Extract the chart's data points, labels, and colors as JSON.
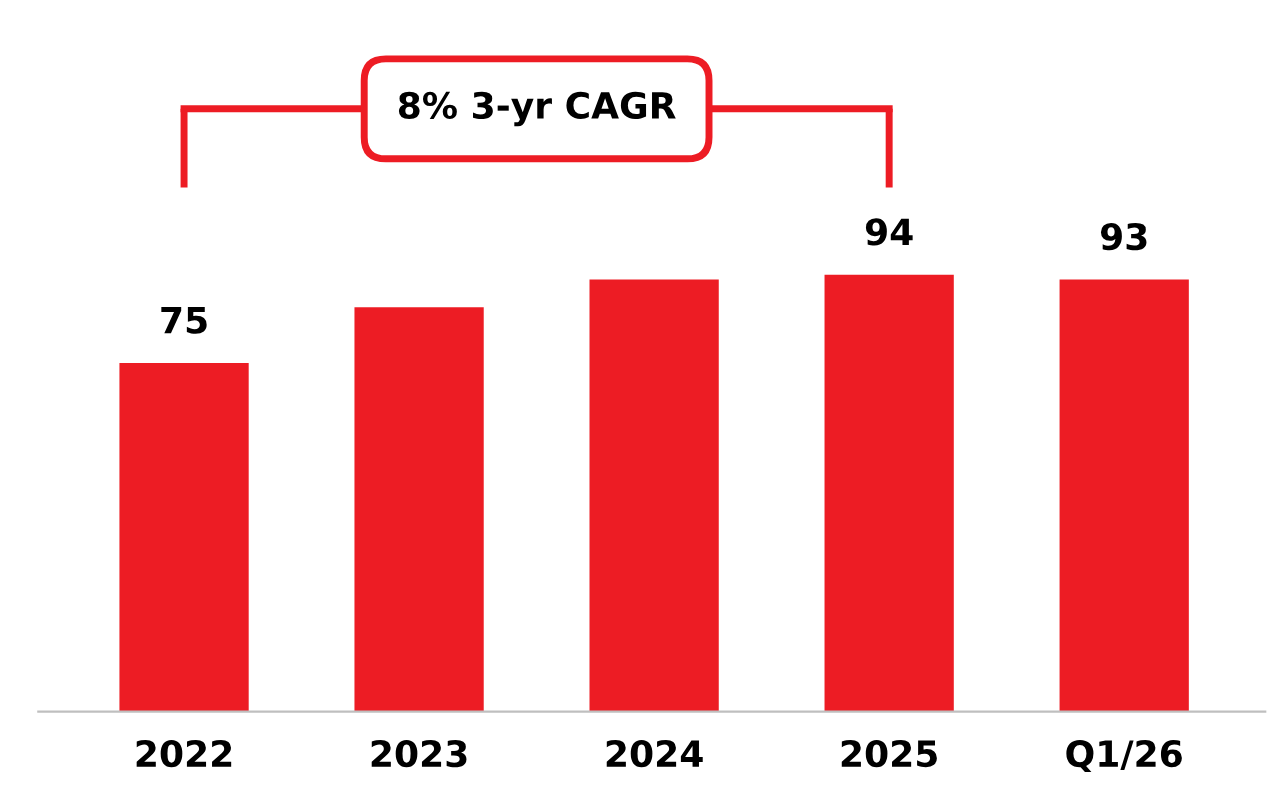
{
  "chart_data": {
    "type": "bar",
    "categories": [
      "2022",
      "2023",
      "2024",
      "2025",
      "Q1/26"
    ],
    "values": [
      75,
      87,
      93,
      94,
      93
    ],
    "value_labels": [
      "75",
      null,
      null,
      "94",
      "93"
    ],
    "color": "#ed1c24",
    "annotations": [
      "8% 3-yr CAGR"
    ],
    "grid": false,
    "legend": false
  }
}
